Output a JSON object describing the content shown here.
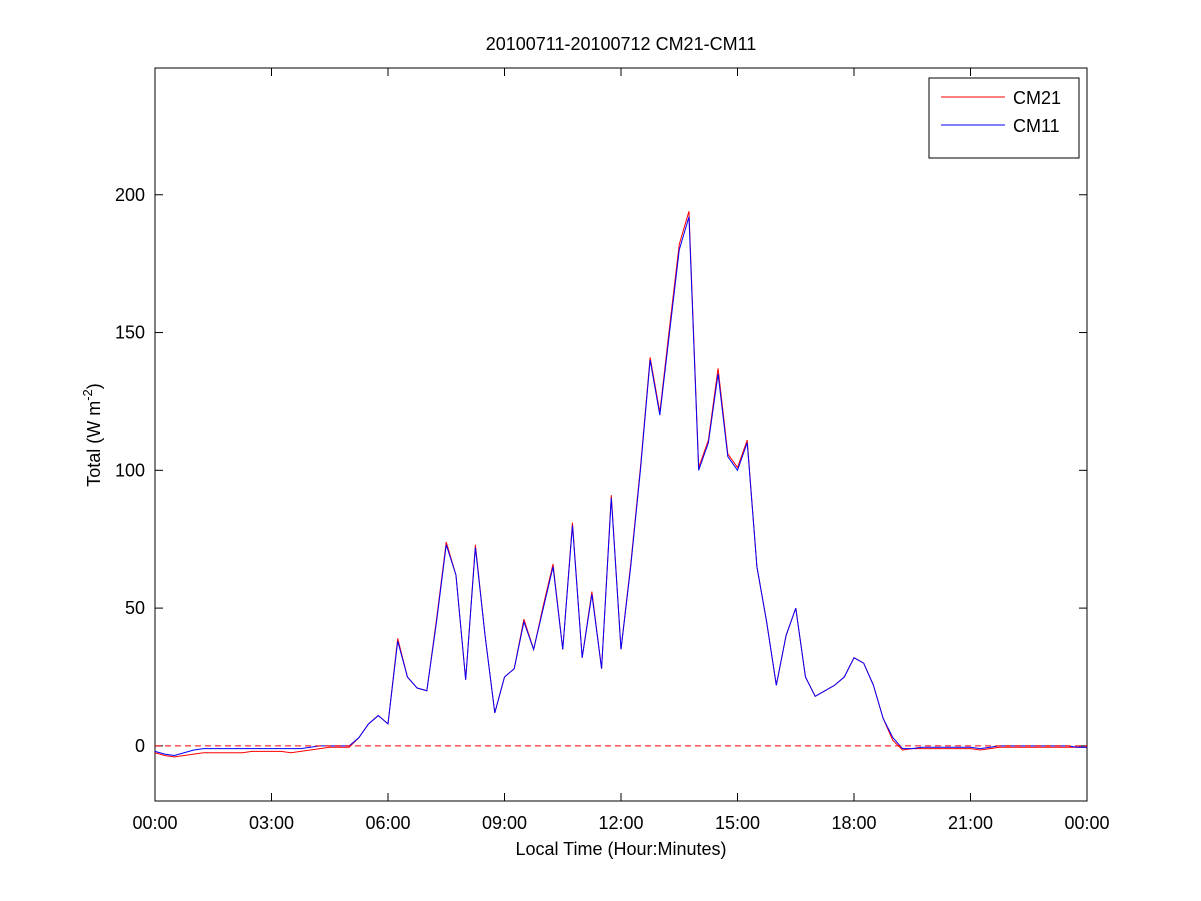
{
  "chart_data": {
    "type": "line",
    "title": "20100711-20100712 CM21-CM11",
    "xlabel": "Local Time (Hour:Minutes)",
    "ylabel": {
      "text": "Total (W m",
      "superscript": "-2",
      "suffix": ")"
    },
    "x": [
      0,
      0.25,
      0.5,
      0.75,
      1,
      1.25,
      1.5,
      1.75,
      2,
      2.25,
      2.5,
      2.75,
      3,
      3.25,
      3.5,
      3.75,
      4,
      4.25,
      4.5,
      4.75,
      5,
      5.25,
      5.5,
      5.75,
      6,
      6.25,
      6.5,
      6.75,
      7,
      7.25,
      7.5,
      7.75,
      8,
      8.25,
      8.5,
      8.75,
      9,
      9.25,
      9.5,
      9.75,
      10,
      10.25,
      10.5,
      10.75,
      11,
      11.25,
      11.5,
      11.75,
      12,
      12.25,
      12.5,
      12.75,
      13,
      13.25,
      13.5,
      13.75,
      14,
      14.25,
      14.5,
      14.75,
      15,
      15.25,
      15.5,
      15.75,
      16,
      16.25,
      16.5,
      16.75,
      17,
      17.25,
      17.5,
      17.75,
      18,
      18.25,
      18.5,
      18.75,
      19,
      19.25,
      19.5,
      19.75,
      20,
      20.25,
      20.5,
      20.75,
      21,
      21.25,
      21.5,
      21.75,
      22,
      22.25,
      22.5,
      22.75,
      23,
      23.25,
      23.5,
      23.75,
      24
    ],
    "series": [
      {
        "name": "CM21",
        "color": "#ff0000",
        "values": [
          -2.5,
          -3.5,
          -4,
          -3.5,
          -3,
          -2.5,
          -2.5,
          -2.5,
          -2.5,
          -2.5,
          -2,
          -2,
          -2,
          -2,
          -2.5,
          -2,
          -1.5,
          -1,
          -0.5,
          -0.5,
          -0.5,
          3,
          8,
          11,
          8,
          39,
          25,
          21,
          20,
          46,
          74,
          62,
          24,
          73,
          40,
          12,
          25,
          28,
          46,
          35,
          51,
          66,
          35,
          81,
          32,
          56,
          28,
          91,
          35,
          66,
          101,
          141,
          121,
          152,
          182,
          194,
          101,
          111,
          137,
          106,
          101,
          111,
          65,
          45,
          22,
          40,
          50,
          25,
          18,
          20,
          22,
          25,
          32,
          30,
          22,
          10,
          2,
          -1.5,
          -1,
          -1,
          -1,
          -1,
          -1,
          -1,
          -1,
          -1.5,
          -1,
          -0.5,
          -0.5,
          -0.5,
          -0.5,
          -0.5,
          -0.5,
          -0.5,
          -0.5,
          -0.5,
          -0.5
        ]
      },
      {
        "name": "CM11",
        "color": "#0000ff",
        "values": [
          -2,
          -3,
          -3.5,
          -2.5,
          -1.5,
          -1,
          -1,
          -1,
          -1,
          -1,
          -1,
          -1,
          -1,
          -1,
          -1,
          -1,
          -0.5,
          0,
          0,
          0,
          0,
          3,
          8,
          11,
          8,
          38,
          25,
          21,
          20,
          45,
          73,
          62,
          24,
          72,
          40,
          12,
          25,
          28,
          45,
          35,
          50,
          65,
          35,
          80,
          32,
          55,
          28,
          90,
          35,
          65,
          100,
          140,
          120,
          150,
          180,
          192,
          100,
          110,
          135,
          105,
          100,
          110,
          65,
          45,
          22,
          40,
          50,
          25,
          18,
          20,
          22,
          25,
          32,
          30,
          22,
          10,
          3,
          -1,
          -1,
          -0.5,
          -0.5,
          -0.5,
          -0.5,
          -0.5,
          -0.5,
          -1,
          -0.5,
          0,
          0,
          0,
          0,
          0,
          0,
          0,
          0,
          -0.5,
          -0.5
        ]
      }
    ],
    "xlim": [
      0,
      24
    ],
    "xticks": [
      {
        "value": 0,
        "label": "00:00"
      },
      {
        "value": 3,
        "label": "03:00"
      },
      {
        "value": 6,
        "label": "06:00"
      },
      {
        "value": 9,
        "label": "09:00"
      },
      {
        "value": 12,
        "label": "12:00"
      },
      {
        "value": 15,
        "label": "15:00"
      },
      {
        "value": 18,
        "label": "18:00"
      },
      {
        "value": 21,
        "label": "21:00"
      },
      {
        "value": 24,
        "label": "00:00"
      }
    ],
    "ylim": [
      -20,
      246
    ],
    "yticks": [
      0,
      50,
      100,
      150,
      200
    ],
    "reference_line": {
      "value": 0,
      "color": "#ff0000",
      "style": "dashed"
    },
    "grid": false,
    "legend": "upper right"
  }
}
